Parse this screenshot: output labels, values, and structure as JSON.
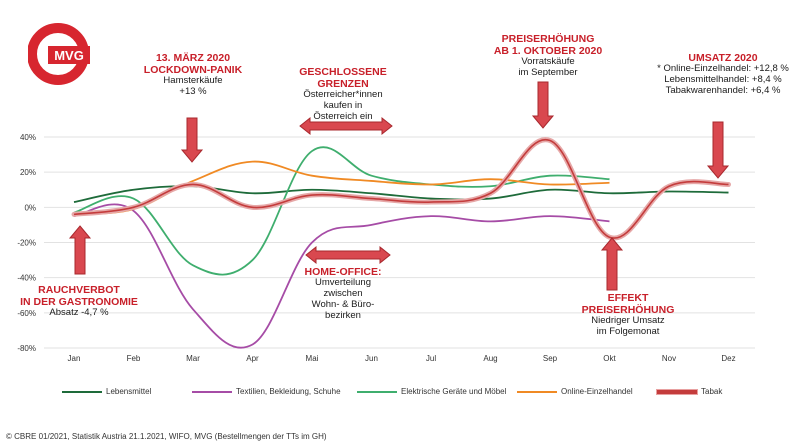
{
  "logo": {
    "text": "MVG"
  },
  "chart_data": {
    "type": "line",
    "categories": [
      "Jan",
      "Feb",
      "Mar",
      "Apr",
      "Mai",
      "Jun",
      "Jul",
      "Aug",
      "Sep",
      "Okt",
      "Nov",
      "Dez"
    ],
    "ylim": [
      -80,
      40
    ],
    "yticks": [
      -80,
      -60,
      -40,
      -20,
      0,
      20,
      40
    ],
    "ytick_labels": [
      "-80%",
      "-60%",
      "-40%",
      "-20%",
      "0%",
      "20%",
      "40%"
    ],
    "series": [
      {
        "name": "Lebensmittel",
        "color": "#1e6b3a",
        "values": [
          3,
          10,
          12,
          8,
          10,
          8,
          5,
          5,
          10,
          8,
          9,
          8.4
        ]
      },
      {
        "name": "Textilien, Bekleidung, Schuhe",
        "color": "#a64ca6",
        "values": [
          -5,
          -2,
          -58,
          -78,
          -20,
          -10,
          -5,
          -8,
          -5,
          -8,
          null,
          null
        ]
      },
      {
        "name": "Elektrische Geräte und Möbel",
        "color": "#3fae6e",
        "values": [
          -3,
          5,
          -33,
          -30,
          32,
          18,
          13,
          12,
          18,
          16,
          null,
          null
        ]
      },
      {
        "name": "Online-Einzelhandel",
        "color": "#f08a24",
        "values": [
          -4,
          -1,
          15,
          26,
          18,
          15,
          13,
          16,
          13,
          14,
          null,
          null
        ]
      },
      {
        "name": "Tabak",
        "color": "#c43c3c",
        "values": [
          -4,
          0,
          13,
          0,
          7,
          5,
          3,
          8,
          38,
          -17,
          12,
          13
        ]
      }
    ]
  },
  "annotations": {
    "lockdown": {
      "head1": "13. MÄRZ 2020",
      "head2": "LOCKDOWN-PANIK",
      "line1": "Hamsterkäufe",
      "line2": "+13 %"
    },
    "grenzen": {
      "head1": "GESCHLOSSENE",
      "head2": "GRENZEN",
      "line1": "Österreicher*innen",
      "line2": "kaufen in",
      "line3": "Österreich ein"
    },
    "preis": {
      "head1": "PREISERHÖHUNG",
      "head2": "AB 1. OKTOBER 2020",
      "line1": "Vorratskäufe",
      "line2": "im September"
    },
    "umsatz": {
      "head": "UMSATZ 2020",
      "line1": "* Online-Einzelhandel: +12,8 %",
      "line2": "Lebensmittelhandel: +8,4 %",
      "line3": "Tabakwarenhandel: +6,4 %"
    },
    "rauch": {
      "head1": "RAUCHVERBOT",
      "head2": "IN DER GASTRONOMIE",
      "line1": "Absatz -4,7 %"
    },
    "homeoffice": {
      "head": "HOME-OFFICE:",
      "line1": "Umverteilung",
      "line2": "zwischen",
      "line3": "Wohn- &  Büro-",
      "line4": "bezirken"
    },
    "effekt": {
      "head1": "EFFEKT",
      "head2": "PREISERHÖHUNG",
      "line1": "Niedriger Umsatz",
      "line2": "im Folgemonat"
    }
  },
  "legend": [
    "Lebensmittel",
    "Textilien, Bekleidung, Schuhe",
    "Elektrische Geräte und Möbel",
    "Online-Einzelhandel",
    "Tabak"
  ],
  "footer": "© CBRE 01/2021, Statistik Austria 21.1.2021, WIFO, MVG (Bestellmengen der TTs im GH)"
}
